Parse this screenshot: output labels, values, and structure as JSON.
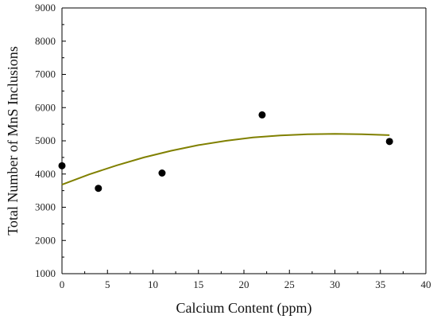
{
  "chart_data": {
    "type": "scatter",
    "xlabel": "Calcium Content (ppm)",
    "ylabel": "Total Number of MnS Inclusions",
    "xlim": [
      0,
      40
    ],
    "ylim": [
      1000,
      9000
    ],
    "x_ticks": [
      0,
      5,
      10,
      15,
      20,
      25,
      30,
      35,
      40
    ],
    "y_ticks": [
      1000,
      2000,
      3000,
      4000,
      5000,
      6000,
      7000,
      8000,
      9000
    ],
    "x_tick_labels": [
      "0",
      "5",
      "10",
      "15",
      "20",
      "25",
      "30",
      "35",
      "40"
    ],
    "y_tick_labels": [
      "1000",
      "2000",
      "3000",
      "4000",
      "5000",
      "6000",
      "7000",
      "8000",
      "9000"
    ],
    "grid": false,
    "series": [
      {
        "type": "scatter",
        "color": "#000000",
        "marker": "filled-circle",
        "x": [
          0,
          4,
          11,
          22,
          36
        ],
        "y": [
          4250,
          3570,
          4030,
          5780,
          4980
        ]
      },
      {
        "type": "line",
        "color": "#808000",
        "fit": "quadratic",
        "x": [
          0,
          3,
          6,
          9,
          12,
          15,
          18,
          21,
          24,
          27,
          30,
          33,
          36
        ],
        "y": [
          3680,
          3990,
          4260,
          4500,
          4700,
          4870,
          5000,
          5100,
          5160,
          5200,
          5210,
          5200,
          5170
        ]
      }
    ]
  }
}
